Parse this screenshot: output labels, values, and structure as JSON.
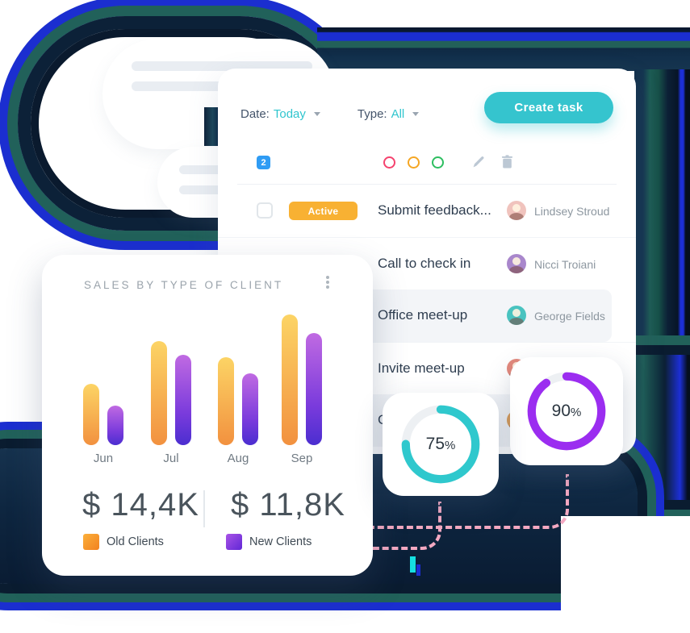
{
  "colors": {
    "accent_teal": "#35c4ce",
    "count_badge_blue": "#2f9cf4",
    "status_orange": "#f8b133",
    "dot_pink": "#f5426e",
    "dot_orange": "#f5a623",
    "dot_green": "#2dbe60",
    "ring_teal": "#2fc8cd",
    "ring_purple": "#9b2df0",
    "dashed_pink": "#f4a9c2"
  },
  "task_panel": {
    "date_filter": {
      "label": "Date:",
      "value": "Today"
    },
    "type_filter": {
      "label": "Type:",
      "value": "All"
    },
    "create_task_label": "Create task",
    "selected_count": "2",
    "rows": [
      {
        "status": "Active",
        "title": "Submit feedback...",
        "assignee": "Lindsey Stroud",
        "highlighted": false,
        "avatar_color": "#f0c3bd"
      },
      {
        "status": "",
        "title": "Call to check in",
        "assignee": "Nicci Troiani",
        "highlighted": false,
        "avatar_color": "#a987cc"
      },
      {
        "status": "",
        "title": "Office meet-up",
        "assignee": "George Fields",
        "highlighted": true,
        "avatar_color": "#49c3c0"
      },
      {
        "status": "",
        "title": "Invite meet-up",
        "assignee": "",
        "highlighted": false,
        "avatar_color": "#e4897c"
      },
      {
        "status": "",
        "title": "C",
        "assignee": "",
        "highlighted": true,
        "avatar_color": "#dd9e58"
      }
    ]
  },
  "sales_card": {
    "title": "SALES BY TYPE OF CLIENT",
    "totals": [
      {
        "value": "$ 14,4K"
      },
      {
        "value": "$ 11,8K"
      }
    ]
  },
  "chart_data": {
    "type": "bar",
    "title": "SALES BY TYPE OF CLIENT",
    "categories": [
      "Jun",
      "Jul",
      "Aug",
      "Sep"
    ],
    "series": [
      {
        "name": "Old Clients",
        "values_k": [
          2.3,
          3.9,
          3.3,
          4.9
        ],
        "total_label": "$ 14,4K",
        "color_top": "#fcd465",
        "color_bottom": "#f2913f"
      },
      {
        "name": "New Clients",
        "values_k": [
          1.5,
          3.4,
          2.7,
          4.2
        ],
        "total_label": "$ 11,8K",
        "color_top": "#c06ae2",
        "color_bottom": "#4b2ed0"
      }
    ],
    "unit": "thousand dollars",
    "grid": false,
    "legend_position": "bottom"
  },
  "progress_cards": [
    {
      "percent": 75,
      "display": "75",
      "unit": "%"
    },
    {
      "percent": 90,
      "display": "90",
      "unit": "%"
    }
  ]
}
